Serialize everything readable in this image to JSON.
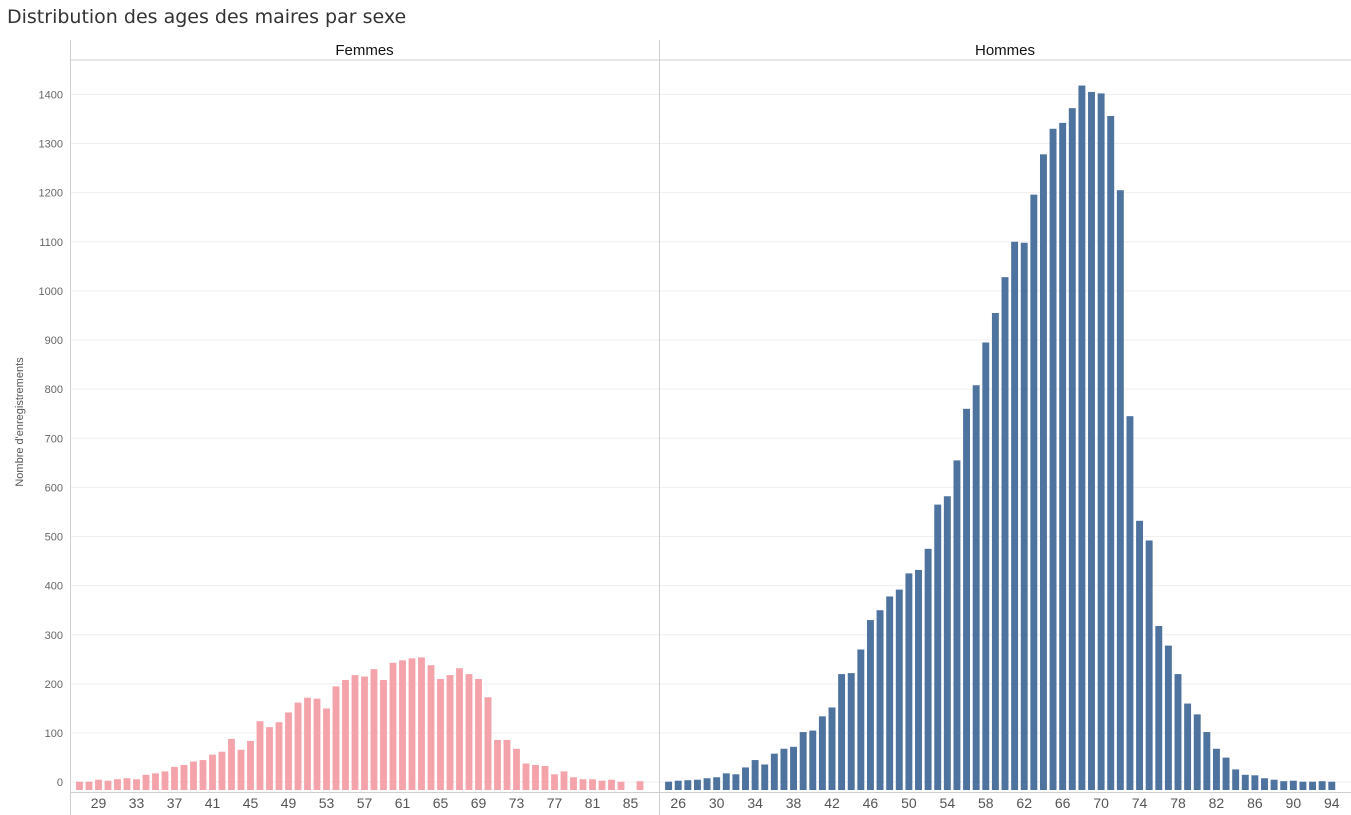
{
  "title": "Distribution des ages des maires par sexe",
  "chart_data": {
    "type": "bar",
    "title": "Distribution des ages des maires par sexe",
    "ylabel": "Nombre d'enregistrements",
    "ylim": [
      -20,
      1470
    ],
    "yticks": [
      0,
      100,
      200,
      300,
      400,
      500,
      600,
      700,
      800,
      900,
      1000,
      1100,
      1200,
      1300,
      1400
    ],
    "grid": true,
    "panels": [
      {
        "name": "Femmes",
        "color": "#f5a3ab",
        "xlim": [
          26,
          88
        ],
        "xticks": [
          29,
          33,
          37,
          41,
          45,
          49,
          53,
          57,
          61,
          65,
          69,
          73,
          77,
          81,
          85
        ],
        "x": [
          27,
          28,
          29,
          30,
          31,
          32,
          33,
          34,
          35,
          36,
          37,
          38,
          39,
          40,
          41,
          42,
          43,
          44,
          45,
          46,
          47,
          48,
          49,
          50,
          51,
          52,
          53,
          54,
          55,
          56,
          57,
          58,
          59,
          60,
          61,
          62,
          63,
          64,
          65,
          66,
          67,
          68,
          69,
          70,
          71,
          72,
          73,
          74,
          75,
          76,
          77,
          78,
          79,
          80,
          81,
          82,
          83,
          84,
          85,
          86,
          87
        ],
        "values": [
          1,
          1,
          5,
          3,
          6,
          8,
          6,
          15,
          18,
          22,
          31,
          35,
          42,
          45,
          56,
          62,
          88,
          66,
          84,
          124,
          112,
          122,
          142,
          162,
          172,
          170,
          150,
          195,
          208,
          218,
          215,
          230,
          208,
          243,
          248,
          252,
          254,
          238,
          210,
          218,
          232,
          220,
          210,
          173,
          86,
          86,
          68,
          38,
          35,
          33,
          16,
          22,
          10,
          6,
          6,
          3,
          5,
          1,
          0,
          2,
          0
        ],
        "data_labels": []
      },
      {
        "name": "Hommes",
        "color": "#4e739f",
        "xlim": [
          24,
          96
        ],
        "xticks": [
          26,
          30,
          34,
          38,
          42,
          46,
          50,
          54,
          58,
          62,
          66,
          70,
          74,
          78,
          82,
          86,
          90,
          94
        ],
        "x": [
          25,
          26,
          27,
          28,
          29,
          30,
          31,
          32,
          33,
          34,
          35,
          36,
          37,
          38,
          39,
          40,
          41,
          42,
          43,
          44,
          45,
          46,
          47,
          48,
          49,
          50,
          51,
          52,
          53,
          54,
          55,
          56,
          57,
          58,
          59,
          60,
          61,
          62,
          63,
          64,
          65,
          66,
          67,
          68,
          69,
          70,
          71,
          72,
          73,
          74,
          75,
          76,
          77,
          78,
          79,
          80,
          81,
          82,
          83,
          84,
          85,
          86,
          87,
          88,
          89,
          90,
          91,
          92,
          93,
          94,
          95
        ],
        "values": [
          1,
          3,
          4,
          5,
          8,
          10,
          18,
          16,
          30,
          45,
          36,
          58,
          68,
          72,
          102,
          105,
          134,
          152,
          220,
          222,
          270,
          330,
          350,
          378,
          392,
          425,
          432,
          475,
          565,
          582,
          655,
          760,
          808,
          895,
          955,
          1028,
          1100,
          1098,
          1196,
          1278,
          1330,
          1342,
          1372,
          1418,
          1405,
          1402,
          1356,
          1205,
          745,
          532,
          492,
          318,
          278,
          220,
          160,
          138,
          102,
          68,
          50,
          26,
          15,
          14,
          8,
          5,
          2,
          3,
          1,
          1,
          2,
          1,
          0
        ],
        "data_labels": []
      }
    ]
  }
}
